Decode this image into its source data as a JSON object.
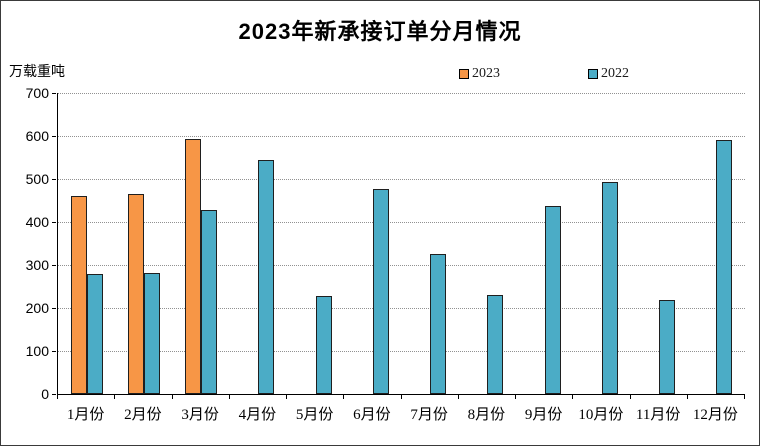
{
  "title": "2023年新承接订单分月情况",
  "y_axis_unit": "万载重吨",
  "legend": [
    {
      "label": "2023",
      "color": "#F79646"
    },
    {
      "label": "2022",
      "color": "#4BACC6"
    }
  ],
  "colors": {
    "bar_2023": "#F79646",
    "bar_2022": "#4BACC6",
    "bar_border": "#1f1f1f",
    "gridline": "#919191",
    "axis": "#000000"
  },
  "chart_data": {
    "type": "bar",
    "title": "2023年新承接订单分月情况",
    "ylabel": "万载重吨",
    "xlabel": "",
    "ylim": [
      0,
      700
    ],
    "ytick_interval": 100,
    "grid": true,
    "legend_position": "top",
    "categories": [
      "1月份",
      "2月份",
      "3月份",
      "4月份",
      "5月份",
      "6月份",
      "7月份",
      "8月份",
      "9月份",
      "10月份",
      "11月份",
      "12月份"
    ],
    "series": [
      {
        "name": "2023",
        "color": "#F79646",
        "values": [
          460,
          464,
          592,
          null,
          null,
          null,
          null,
          null,
          null,
          null,
          null,
          null
        ]
      },
      {
        "name": "2022",
        "color": "#4BACC6",
        "values": [
          279,
          282,
          427,
          545,
          229,
          476,
          326,
          231,
          438,
          492,
          219,
          590
        ]
      }
    ]
  }
}
